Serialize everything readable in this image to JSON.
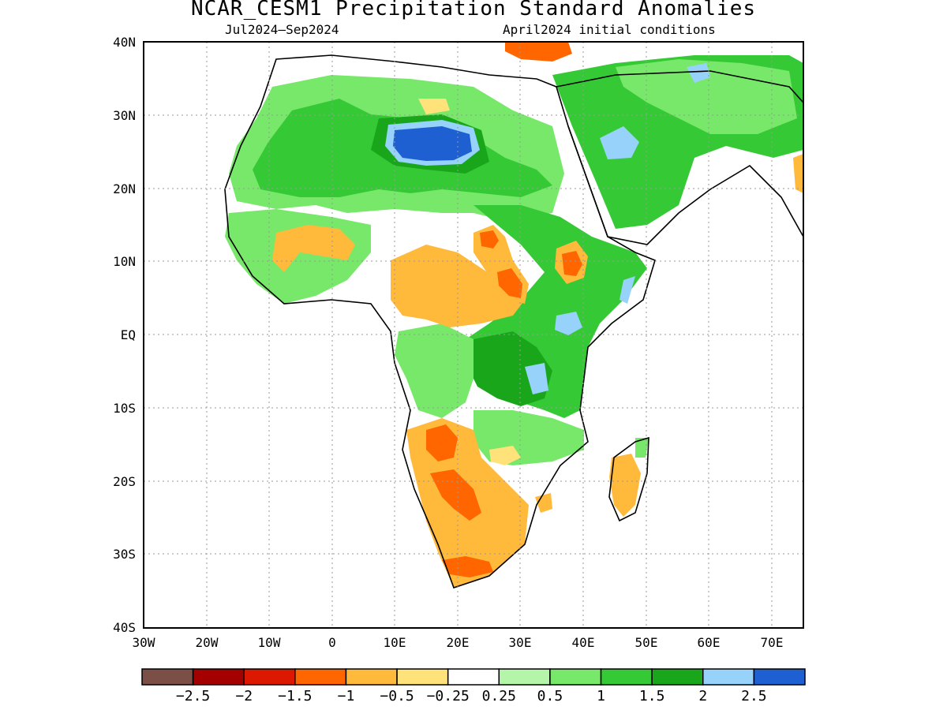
{
  "title": "NCAR_CESM1 Precipitation Standard Anomalies",
  "subtitle_left": "Jul2024–Sep2024",
  "subtitle_right": "April2024 initial conditions",
  "lat_labels": [
    "40N",
    "30N",
    "20N",
    "10N",
    "EQ",
    "10S",
    "20S",
    "30S",
    "40S"
  ],
  "lon_labels": [
    "30W",
    "20W",
    "10W",
    "0",
    "10E",
    "20E",
    "30E",
    "40E",
    "50E",
    "60E",
    "70E"
  ],
  "colorbar": {
    "colors": [
      "#7b4f45",
      "#a50000",
      "#dd1800",
      "#ff6600",
      "#ffb93b",
      "#ffe37a",
      "#ffffff",
      "#b4f5aa",
      "#78e86a",
      "#36c936",
      "#1aa61a",
      "#96d2fa",
      "#1e5fd2"
    ],
    "labels": [
      "−2.5",
      "−2",
      "−1.5",
      "−1",
      "−0.5",
      "−0.25",
      "0.25",
      "0.5",
      "1",
      "1.5",
      "2",
      "2.5"
    ]
  },
  "colors": {
    "strong_dry": "#ff6600",
    "dry": "#ffb93b",
    "slight_dry": "#ffe37a",
    "slight_wet": "#b4f5aa",
    "wet": "#78e86a",
    "wetter": "#36c936",
    "very_wet": "#1aa61a",
    "extreme_wet": "#96d2fa",
    "extreme_wet2": "#1e5fd2"
  }
}
